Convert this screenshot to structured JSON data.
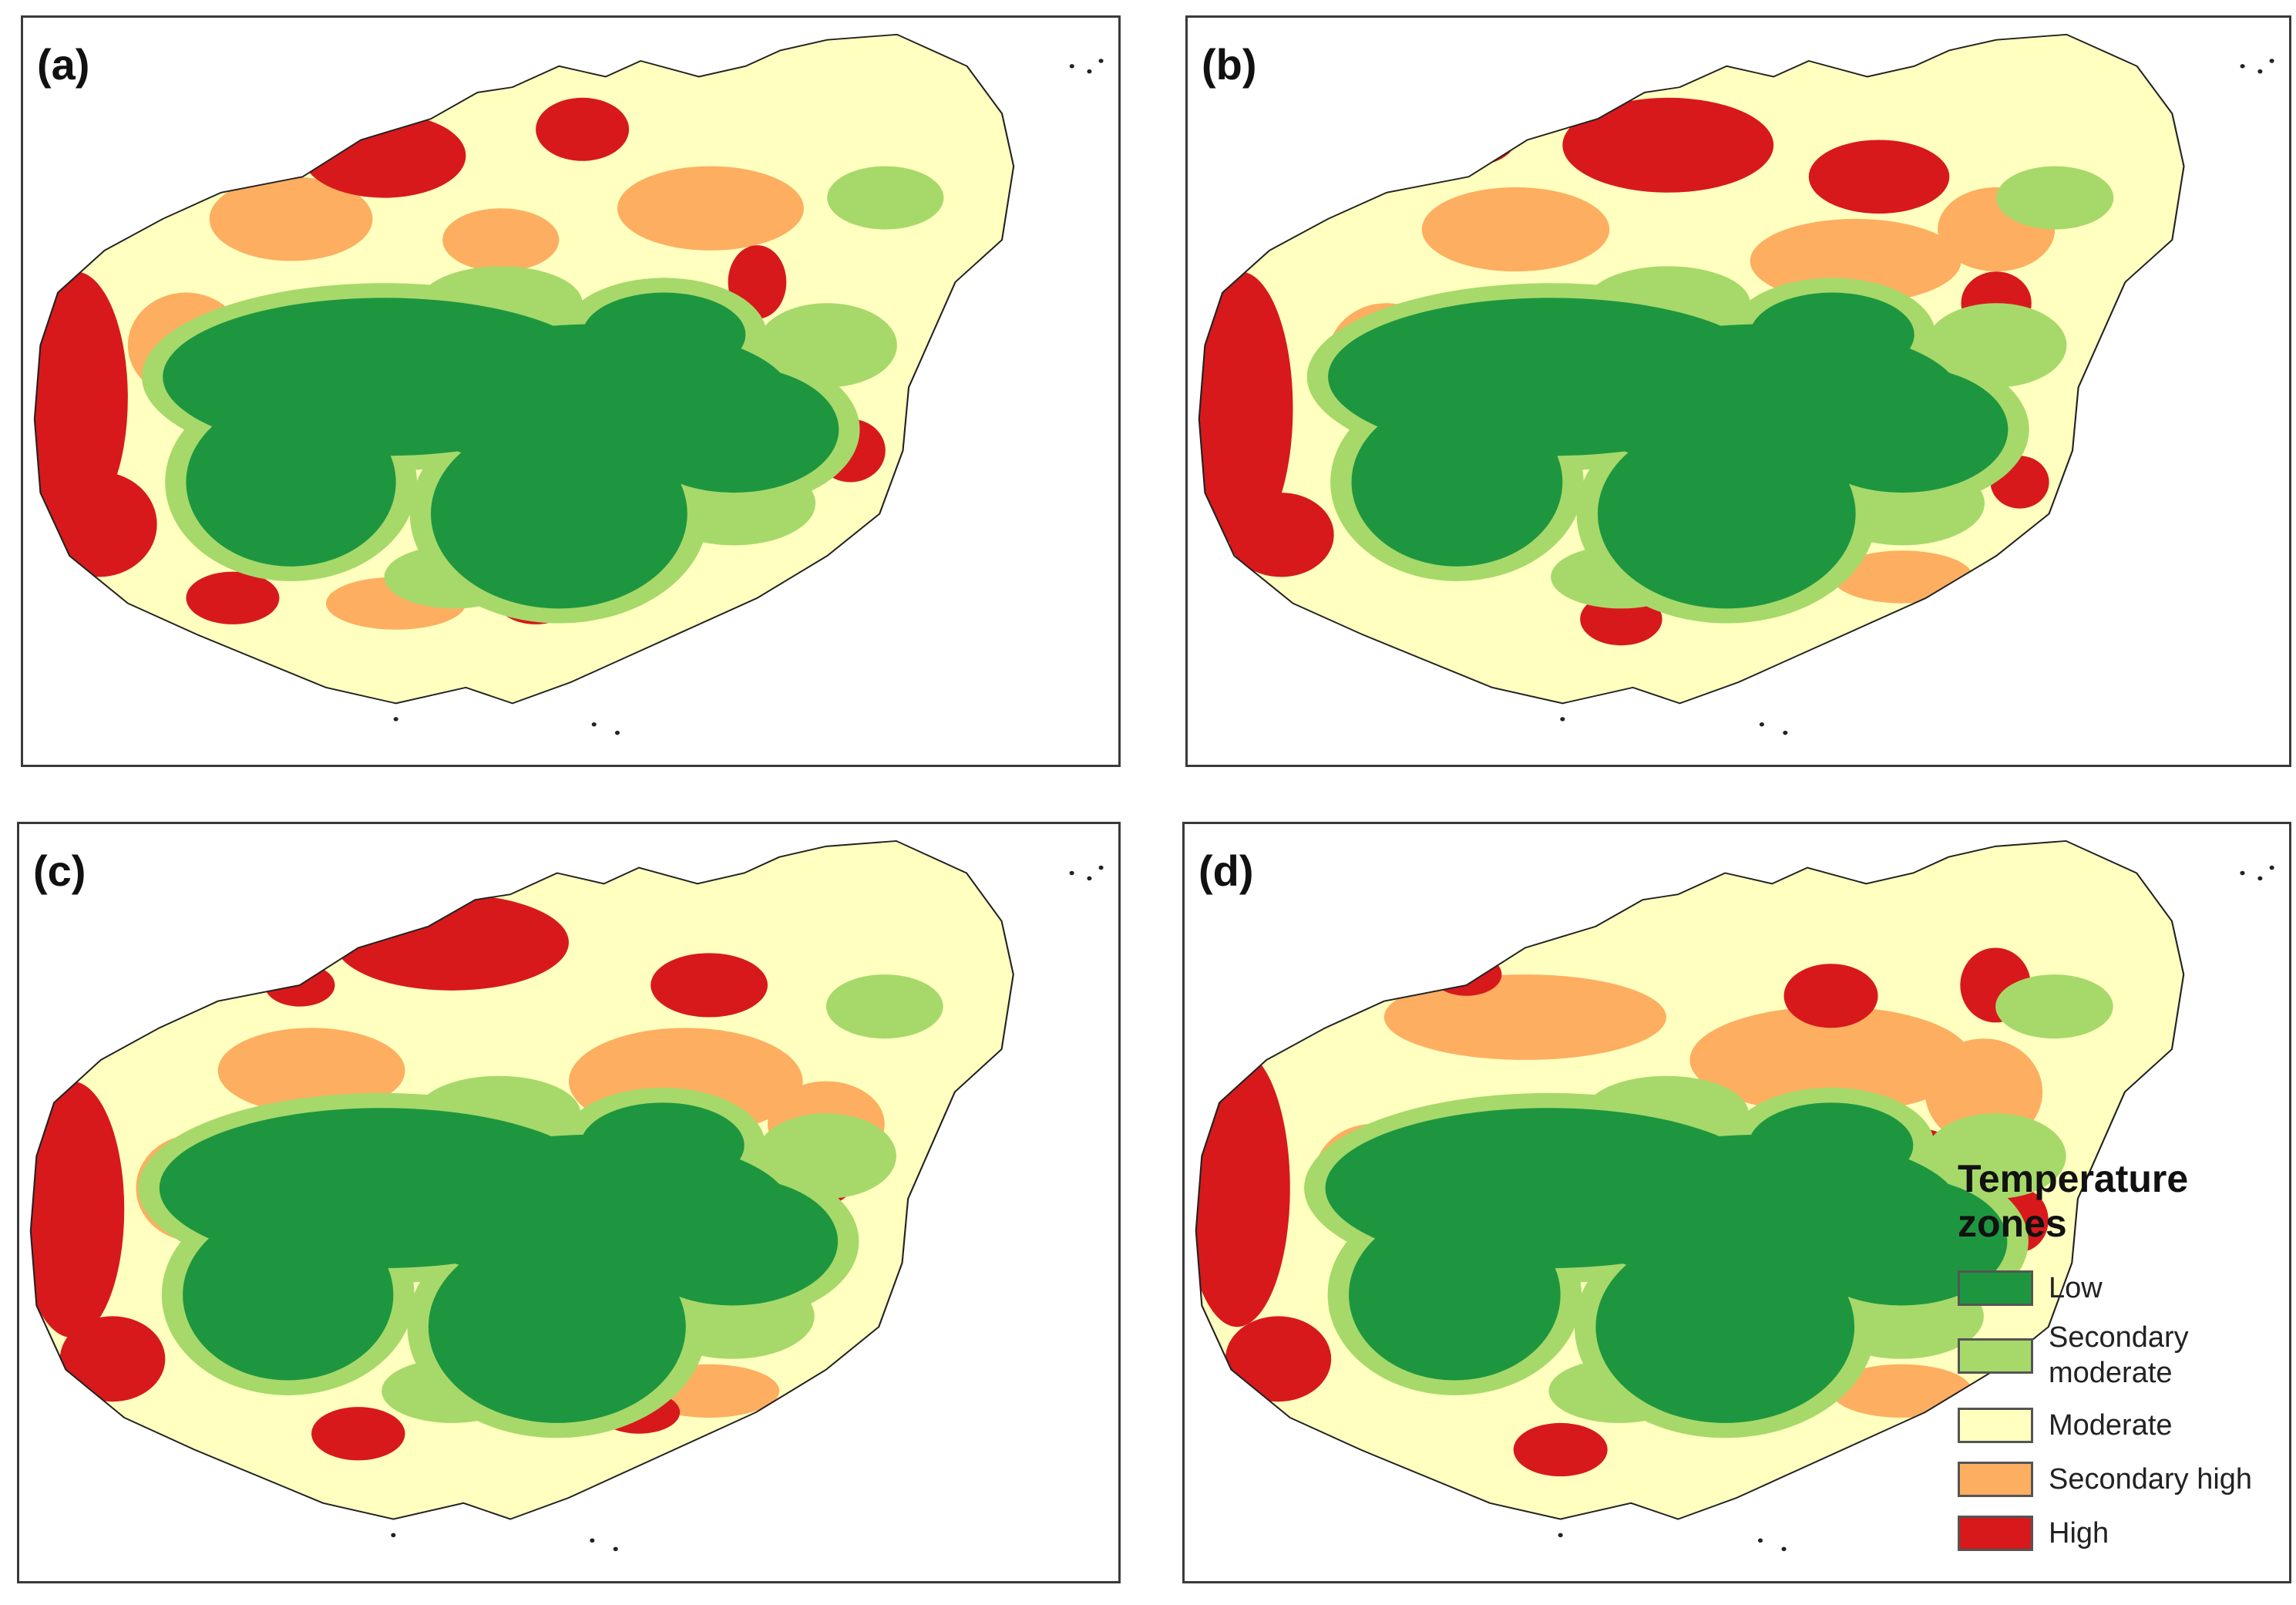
{
  "panels": [
    {
      "label": "(a)"
    },
    {
      "label": "(b)"
    },
    {
      "label": "(c)"
    },
    {
      "label": "(d)"
    }
  ],
  "legend": {
    "title": "Temperature zones",
    "items": [
      {
        "label": "Low",
        "color": "#1e9640"
      },
      {
        "label": "Secondary moderate",
        "color": "#a6d96a"
      },
      {
        "label": "Moderate",
        "color": "#ffffbf"
      },
      {
        "label": "Secondary high",
        "color": "#fdae61"
      },
      {
        "label": "High",
        "color": "#d7191c"
      }
    ]
  }
}
